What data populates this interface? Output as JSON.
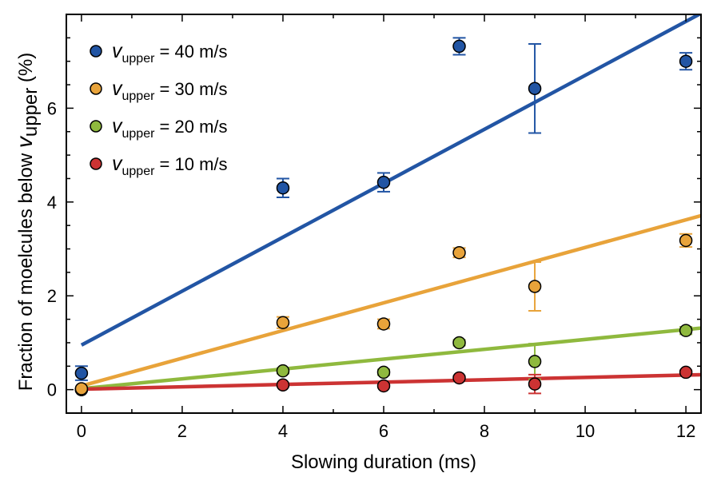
{
  "chart_data": {
    "type": "scatter",
    "title": "",
    "xlabel": "Slowing duration (ms)",
    "ylabel_prefix": "Fraction of moelcules below ",
    "ylabel_var": "v",
    "ylabel_sub": "upper",
    "ylabel_suffix": " (%)",
    "xlim": [
      -0.3,
      12.3
    ],
    "ylim": [
      -0.5,
      8.0
    ],
    "xticks": [
      0,
      2,
      4,
      6,
      8,
      10,
      12
    ],
    "yticks": [
      0,
      2,
      4,
      6
    ],
    "grid": false,
    "legend_position": "top-left",
    "series": [
      {
        "name_var": "v",
        "name_sub": "upper",
        "name_rest": " = 40 m/s",
        "color": "#2255a4",
        "x": [
          0,
          4,
          6,
          7.5,
          9,
          12
        ],
        "y": [
          0.35,
          4.3,
          4.42,
          7.32,
          6.42,
          7.0
        ],
        "err": [
          0.15,
          0.2,
          0.2,
          0.18,
          0.95,
          0.18
        ],
        "fit": {
          "intercept": 0.95,
          "slope": 0.575
        }
      },
      {
        "name_var": "v",
        "name_sub": "upper",
        "name_rest": " = 30 m/s",
        "color": "#e8a33a",
        "x": [
          0,
          4,
          6,
          7.5,
          9,
          12
        ],
        "y": [
          0.02,
          1.43,
          1.4,
          2.92,
          2.2,
          3.18
        ],
        "err": [
          0.02,
          0.12,
          0.1,
          0.1,
          0.52,
          0.14
        ],
        "fit": {
          "intercept": 0.08,
          "slope": 0.295
        }
      },
      {
        "name_var": "v",
        "name_sub": "upper",
        "name_rest": " = 20 m/s",
        "color": "#8fb93e",
        "x": [
          0,
          4,
          6,
          7.5,
          9,
          12
        ],
        "y": [
          0.0,
          0.4,
          0.37,
          1.0,
          0.6,
          1.26
        ],
        "err": [
          0.02,
          0.06,
          0.06,
          0.06,
          0.38,
          0.08
        ],
        "fit": {
          "intercept": 0.02,
          "slope": 0.105
        }
      },
      {
        "name_var": "v",
        "name_sub": "upper",
        "name_rest": " = 10 m/s",
        "color": "#cc3333",
        "x": [
          0,
          4,
          6,
          7.5,
          9,
          12
        ],
        "y": [
          0.0,
          0.1,
          0.08,
          0.25,
          0.12,
          0.37
        ],
        "err": [
          0.02,
          0.03,
          0.03,
          0.04,
          0.2,
          0.04
        ],
        "fit": {
          "intercept": 0.01,
          "slope": 0.025
        }
      }
    ]
  }
}
